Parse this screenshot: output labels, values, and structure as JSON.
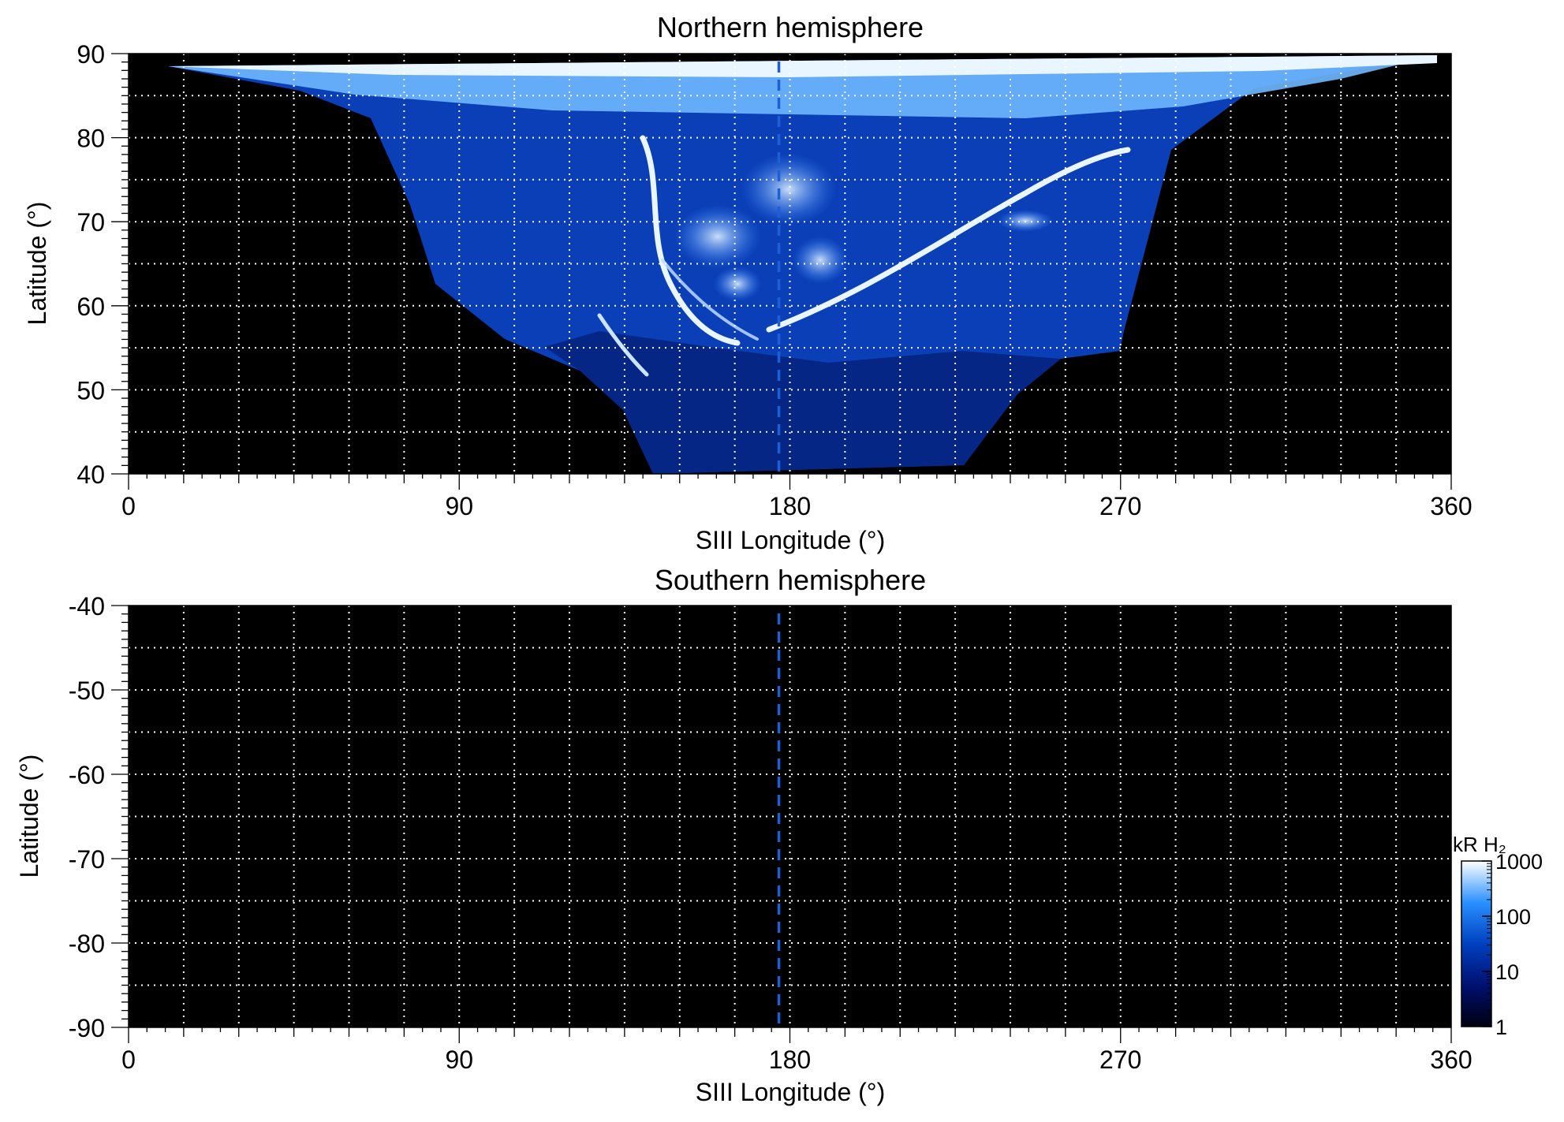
{
  "figure": {
    "colorbar": {
      "label": "kR H₂",
      "scale": "log",
      "range": [
        1,
        1000
      ],
      "ticks": [
        "1000",
        "100",
        "10",
        "1"
      ],
      "tick_values": [
        1000,
        100,
        10,
        1
      ]
    }
  },
  "chart_data": [
    {
      "type": "heatmap",
      "title": "Northern hemisphere",
      "xlabel": "SIII Longitude (°)",
      "ylabel": "Latitude (°)",
      "xlim": [
        0,
        360
      ],
      "ylim": [
        40,
        90
      ],
      "xticks": [
        0,
        90,
        180,
        270,
        360
      ],
      "yticks": [
        40,
        50,
        60,
        70,
        80,
        90
      ],
      "grid": true,
      "marker_line_x": 177,
      "description_of_data": "observed auroral H2 emission coverage"
    },
    {
      "type": "heatmap",
      "title": "Southern hemisphere",
      "xlabel": "SIII Longitude (°)",
      "ylabel": "Latitude (°)",
      "xlim": [
        0,
        360
      ],
      "ylim": [
        -90,
        -40
      ],
      "xticks": [
        0,
        90,
        180,
        270,
        360
      ],
      "yticks": [
        -40,
        -50,
        -60,
        -70,
        -80,
        -90
      ],
      "grid": true,
      "marker_line_x": 177
    }
  ]
}
